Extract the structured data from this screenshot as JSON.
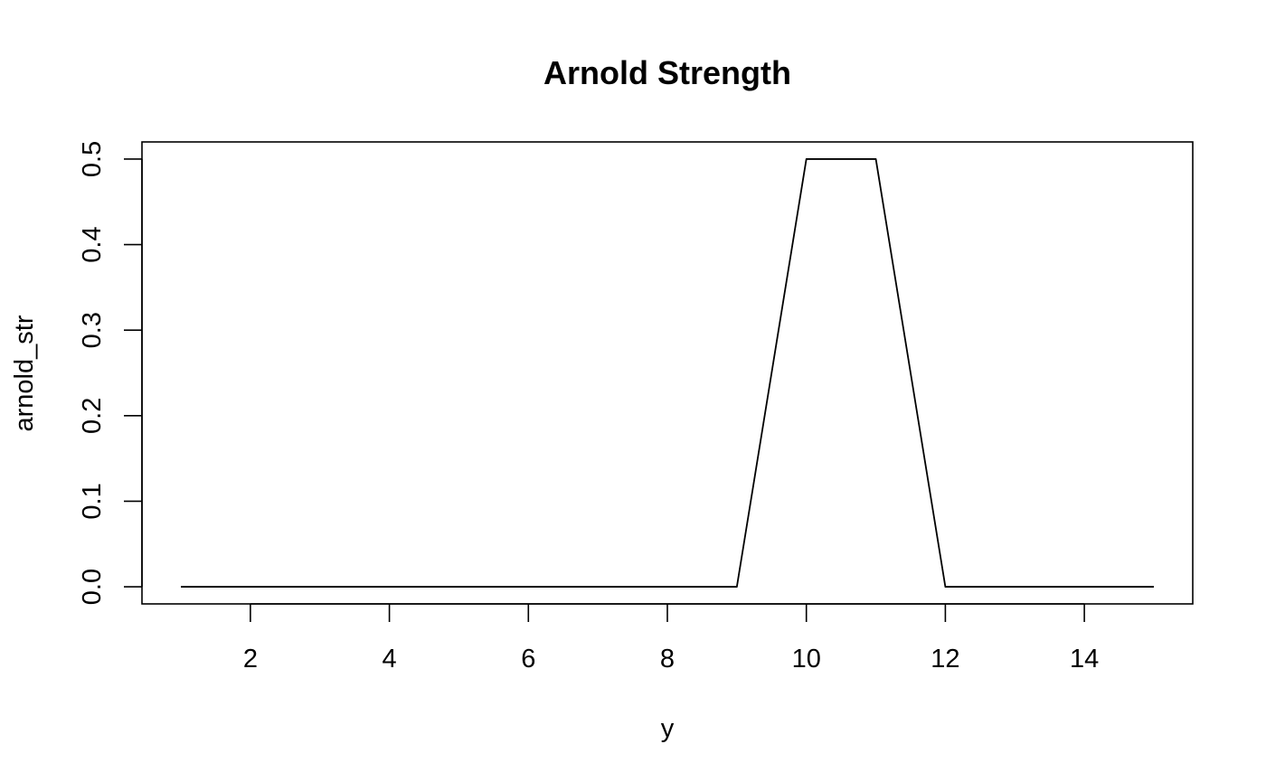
{
  "chart_data": {
    "type": "line",
    "title": "Arnold Strength",
    "xlabel": "y",
    "ylabel": "arnold_str",
    "x": [
      1,
      2,
      3,
      4,
      5,
      6,
      7,
      8,
      9,
      10,
      11,
      12,
      13,
      14,
      15
    ],
    "series": [
      {
        "values": [
          0,
          0,
          0,
          0,
          0,
          0,
          0,
          0,
          0,
          0.5,
          0.5,
          0,
          0,
          0,
          0
        ],
        "color": "#000000"
      }
    ],
    "xlim": [
      0.44,
      15.56
    ],
    "ylim": [
      -0.02,
      0.52
    ],
    "x_ticks": [
      2,
      4,
      6,
      8,
      10,
      12,
      14
    ],
    "x_tick_labels": [
      "2",
      "4",
      "6",
      "8",
      "10",
      "12",
      "14"
    ],
    "y_ticks": [
      0,
      0.1,
      0.2,
      0.3,
      0.4,
      0.5
    ],
    "y_tick_labels": [
      "0.0",
      "0.1",
      "0.2",
      "0.3",
      "0.4",
      "0.5"
    ],
    "grid": false,
    "legend": "none"
  }
}
